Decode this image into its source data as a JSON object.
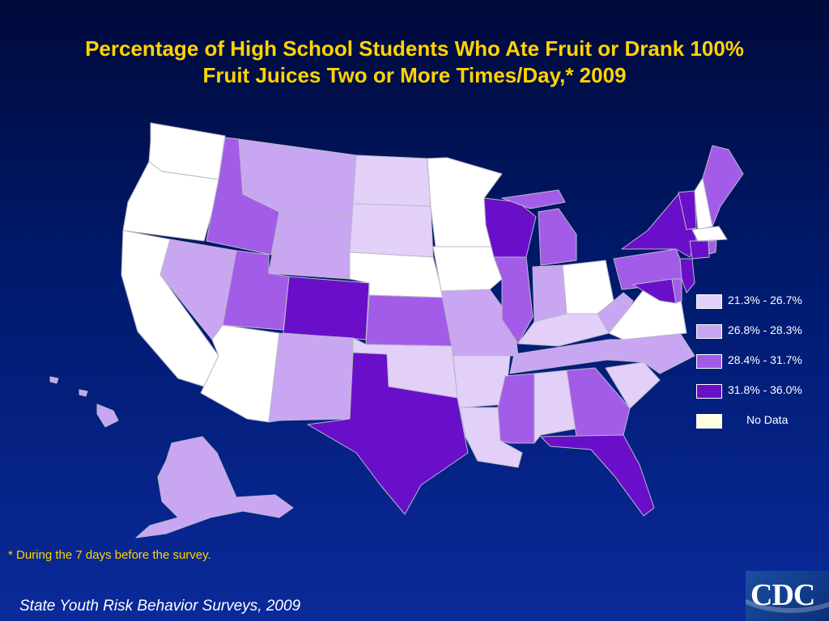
{
  "title_line1": "Percentage of High School Students Who Ate Fruit or Drank 100%",
  "title_line2": "Fruit Juices Two or More Times/Day,* 2009",
  "footnote": "* During the 7 days before the survey.",
  "source": "State Youth Risk Behavior Surveys, 2009",
  "logo_text": "CDC",
  "colors": {
    "no_survey": "#ffffff",
    "bin1": "#e3d0f8",
    "bin2": "#c9a6f2",
    "bin3": "#a35ce8",
    "bin4": "#6a0fc9",
    "no_data": "#ffffe0"
  },
  "legend": [
    {
      "label": "21.3% - 26.7%",
      "color_key": "bin1"
    },
    {
      "label": "26.8% - 28.3%",
      "color_key": "bin2"
    },
    {
      "label": "28.4% - 31.7%",
      "color_key": "bin3"
    },
    {
      "label": "31.8% - 36.0%",
      "color_key": "bin4"
    },
    {
      "label": "No Data",
      "color_key": "no_data"
    }
  ],
  "states": {
    "WA": "no_survey",
    "OR": "no_survey",
    "CA": "no_survey",
    "AZ": "no_survey",
    "NE": "no_survey",
    "MN": "no_survey",
    "IA": "no_survey",
    "OH": "no_survey",
    "VA": "no_survey",
    "NH": "no_survey",
    "MA": "no_survey",
    "ND": "bin1",
    "SD": "bin1",
    "OK": "bin1",
    "AR": "bin1",
    "LA": "bin1",
    "AL": "bin1",
    "KY": "bin1",
    "SC": "bin1",
    "MT": "bin2",
    "WY": "bin2",
    "NV": "bin2",
    "NM": "bin2",
    "MO": "bin2",
    "IN": "bin2",
    "TN": "bin2",
    "NC": "bin2",
    "WV": "bin2",
    "AK": "bin2",
    "HI": "bin2",
    "ID": "bin3",
    "UT": "bin3",
    "KS": "bin3",
    "IL": "bin3",
    "MI": "bin3",
    "MS": "bin3",
    "GA": "bin3",
    "PA": "bin3",
    "ME": "bin3",
    "RI": "bin3",
    "DE": "bin3",
    "CO": "bin4",
    "TX": "bin4",
    "WI": "bin4",
    "NY": "bin4",
    "VT": "bin4",
    "CT": "bin4",
    "NJ": "bin4",
    "MD": "bin4",
    "FL": "bin4"
  }
}
